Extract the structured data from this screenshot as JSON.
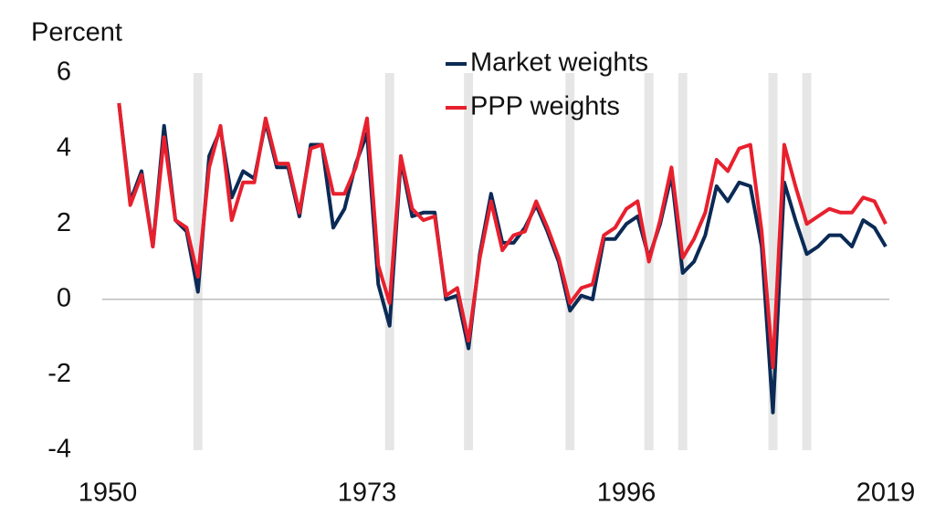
{
  "chart_data": {
    "type": "line",
    "y_label": "Percent",
    "x": [
      1951,
      1952,
      1953,
      1954,
      1955,
      1956,
      1957,
      1958,
      1959,
      1960,
      1961,
      1962,
      1963,
      1964,
      1965,
      1966,
      1967,
      1968,
      1969,
      1970,
      1971,
      1972,
      1973,
      1974,
      1975,
      1976,
      1977,
      1978,
      1979,
      1980,
      1981,
      1982,
      1983,
      1984,
      1985,
      1986,
      1987,
      1988,
      1989,
      1990,
      1991,
      1992,
      1993,
      1994,
      1995,
      1996,
      1997,
      1998,
      1999,
      2000,
      2001,
      2002,
      2003,
      2004,
      2005,
      2006,
      2007,
      2008,
      2009,
      2010,
      2011,
      2012,
      2013,
      2014,
      2015,
      2016,
      2017,
      2018,
      2019
    ],
    "series": [
      {
        "name": "Market weights",
        "color": "#0b2a55",
        "values": [
          5.2,
          2.6,
          3.4,
          1.4,
          4.6,
          2.1,
          1.8,
          0.2,
          3.8,
          4.5,
          2.7,
          3.4,
          3.2,
          4.7,
          3.5,
          3.5,
          2.2,
          4.1,
          4.1,
          1.9,
          2.4,
          3.6,
          4.4,
          0.4,
          -0.7,
          3.7,
          2.2,
          2.3,
          2.3,
          0.0,
          0.1,
          -1.3,
          1.2,
          2.8,
          1.5,
          1.5,
          1.9,
          2.5,
          1.8,
          1.0,
          -0.3,
          0.1,
          0.0,
          1.6,
          1.6,
          2.0,
          2.2,
          1.1,
          2.0,
          3.3,
          0.7,
          1.0,
          1.7,
          3.0,
          2.6,
          3.1,
          3.0,
          1.4,
          -3.0,
          3.1,
          2.1,
          1.2,
          1.4,
          1.7,
          1.7,
          1.4,
          2.1,
          1.9,
          1.4
        ]
      },
      {
        "name": "PPP weights",
        "color": "#e8202e",
        "values": [
          5.2,
          2.5,
          3.3,
          1.4,
          4.3,
          2.1,
          1.9,
          0.6,
          3.5,
          4.6,
          2.1,
          3.1,
          3.1,
          4.8,
          3.6,
          3.6,
          2.3,
          4.0,
          4.1,
          2.8,
          2.8,
          3.5,
          4.8,
          0.9,
          -0.1,
          3.8,
          2.4,
          2.1,
          2.2,
          0.1,
          0.3,
          -1.1,
          1.1,
          2.6,
          1.3,
          1.7,
          1.8,
          2.6,
          1.9,
          1.1,
          -0.1,
          0.3,
          0.4,
          1.7,
          1.9,
          2.4,
          2.6,
          1.0,
          2.1,
          3.5,
          1.1,
          1.6,
          2.3,
          3.7,
          3.4,
          4.0,
          4.1,
          1.8,
          -1.8,
          4.1,
          3.0,
          2.0,
          2.2,
          2.4,
          2.3,
          2.3,
          2.7,
          2.6,
          2.0
        ]
      }
    ],
    "shaded_years": [
      1958,
      1975,
      1982,
      1991,
      1998,
      2001,
      2009,
      2012
    ],
    "shade_color": "#e6e6e6",
    "xlim": [
      1950,
      2019
    ],
    "xticks": [
      1950,
      1973,
      1996,
      2019
    ],
    "ylim": [
      -4,
      6
    ],
    "yticks": [
      -4,
      -2,
      0,
      2,
      4,
      6
    ],
    "zero_line": true,
    "legend": "top"
  }
}
